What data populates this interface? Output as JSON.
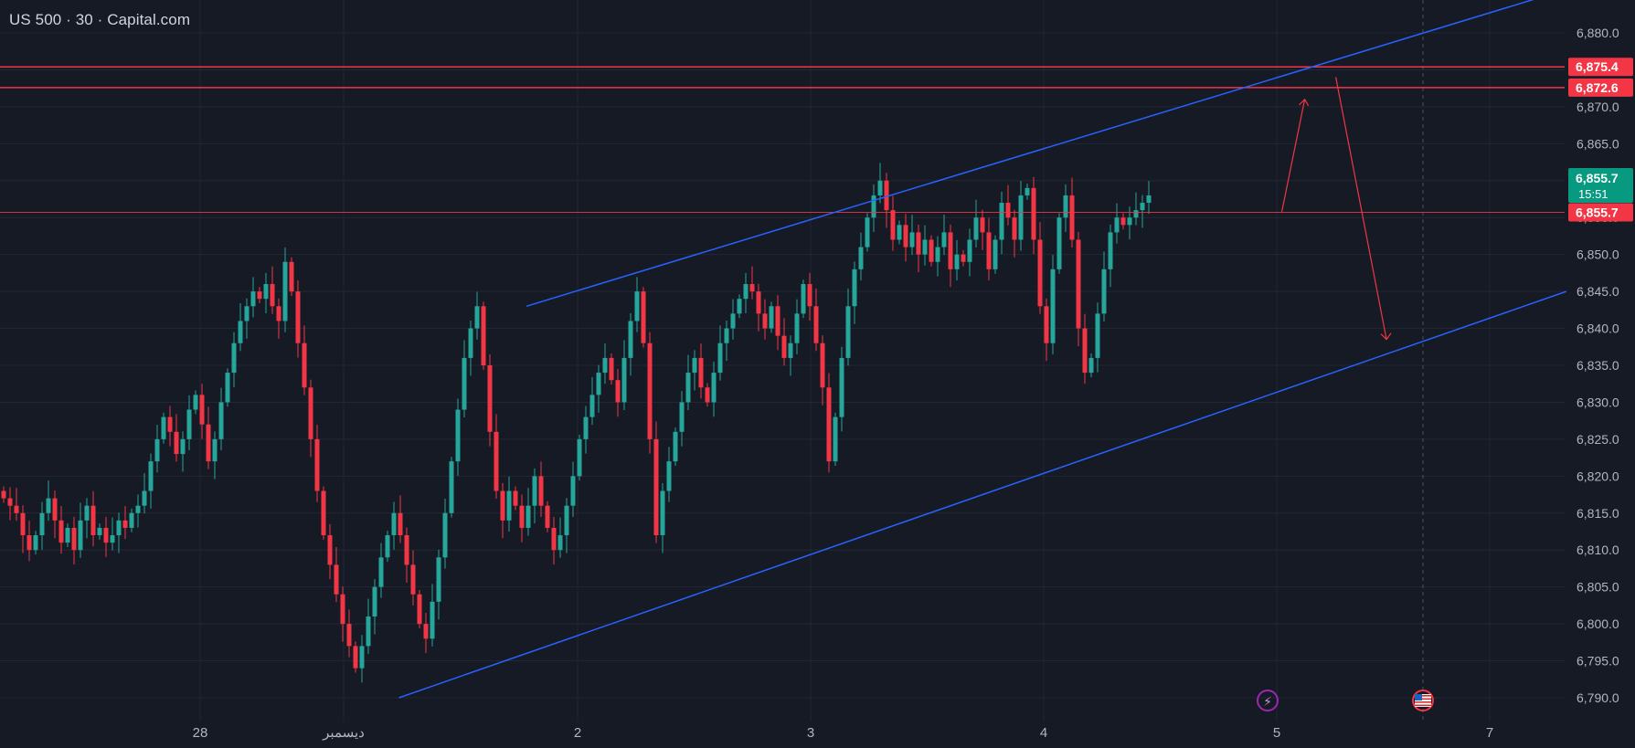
{
  "header": {
    "title": "US 500 · 30 · Capital.com"
  },
  "colors": {
    "background": "#161a25",
    "grid": "#232733",
    "up": "#26a69a",
    "down": "#f23645",
    "channel": "#2962ff",
    "level": "#f23645",
    "price_badge": "#089981",
    "axis_text": "#b2b5be"
  },
  "icons": {
    "event_lightning": "lightning-icon",
    "event_flag": "us-flag-icon"
  },
  "chart_data": {
    "type": "candlestick",
    "symbol": "US 500",
    "interval": "30",
    "source": "Capital.com",
    "ylim": [
      6788,
      6884
    ],
    "x_labels": [
      "28",
      "ديسمبر",
      "2",
      "3",
      "4",
      "5",
      "7"
    ],
    "y_ticks": [
      6790,
      6795,
      6800,
      6805,
      6810,
      6815,
      6820,
      6825,
      6830,
      6835,
      6840,
      6845,
      6850,
      6855,
      6860,
      6865,
      6870,
      6875,
      6880
    ],
    "y_tick_labels": [
      "6,790.0",
      "6,795.0",
      "6,800.0",
      "6,805.0",
      "6,810.0",
      "6,815.0",
      "6,820.0",
      "6,825.0",
      "6,830.0",
      "6,835.0",
      "6,840.0",
      "6,845.0",
      "6,850.0",
      "6,855.0",
      "6,860.0",
      "6,865.0",
      "6,870.0",
      "6,875.0",
      "6,880.0"
    ],
    "horizontal_levels": [
      {
        "value": 6875.4,
        "label": "6,875.4"
      },
      {
        "value": 6872.6,
        "label": "6,872.6"
      },
      {
        "value": 6855.7,
        "label": "6,855.7"
      }
    ],
    "last_price": {
      "label": "6,855.7",
      "countdown": "15:51"
    },
    "channel_upper": [
      [
        0.322,
        6843.0
      ],
      [
        0.945,
        6885.0
      ]
    ],
    "channel_lower": [
      [
        0.244,
        6790.0
      ],
      [
        0.958,
        6845.0
      ]
    ],
    "projection_path": [
      [
        0.784,
        6855.8
      ],
      [
        0.798,
        6871.0
      ],
      [
        0.817,
        6874.0
      ],
      [
        0.848,
        6838.5
      ]
    ],
    "closes": [
      6817,
      6816,
      6815,
      6812,
      6810,
      6812,
      6815,
      6817,
      6814,
      6811,
      6813,
      6810,
      6814,
      6816,
      6812,
      6813,
      6811,
      6812,
      6814,
      6813,
      6815,
      6816,
      6818,
      6822,
      6825,
      6828,
      6826,
      6823,
      6825,
      6829,
      6831,
      6827,
      6822,
      6825,
      6830,
      6834,
      6838,
      6841,
      6843,
      6845,
      6844,
      6846,
      6843,
      6841,
      6849,
      6845,
      6838,
      6832,
      6825,
      6818,
      6812,
      6808,
      6804,
      6800,
      6797,
      6794,
      6797,
      6801,
      6805,
      6809,
      6812,
      6815,
      6812,
      6808,
      6804,
      6800,
      6798,
      6803,
      6809,
      6815,
      6822,
      6829,
      6836,
      6840,
      6843,
      6835,
      6826,
      6818,
      6814,
      6818,
      6816,
      6813,
      6816,
      6820,
      6816,
      6813,
      6810,
      6812,
      6816,
      6820,
      6825,
      6828,
      6831,
      6834,
      6836,
      6833,
      6830,
      6836,
      6841,
      6845,
      6838,
      6825,
      6812,
      6818,
      6822,
      6826,
      6830,
      6834,
      6836,
      6832,
      6830,
      6834,
      6838,
      6840,
      6842,
      6844,
      6846,
      6845,
      6842,
      6840,
      6843,
      6839,
      6836,
      6838,
      6842,
      6846,
      6843,
      6838,
      6832,
      6822,
      6828,
      6836,
      6843,
      6848,
      6851,
      6855,
      6858,
      6860,
      6856,
      6852,
      6854,
      6851,
      6853,
      6850,
      6852,
      6849,
      6851,
      6853,
      6848,
      6850,
      6849,
      6852,
      6855,
      6853,
      6848,
      6852,
      6857,
      6855,
      6852,
      6858,
      6859,
      6852,
      6843,
      6838,
      6848,
      6855,
      6858,
      6852,
      6840,
      6834,
      6836,
      6842,
      6848,
      6853,
      6855,
      6854,
      6855,
      6856,
      6857,
      6858
    ]
  }
}
